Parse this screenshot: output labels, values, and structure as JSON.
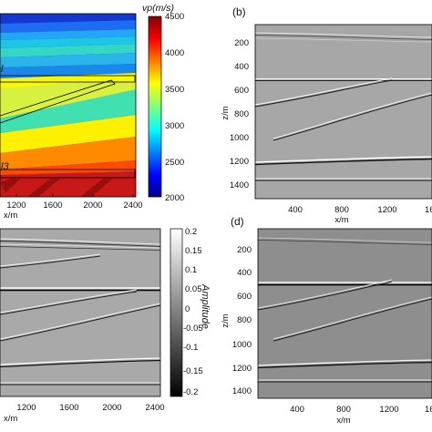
{
  "panels": {
    "a": {
      "colorbar": {
        "title": "vp(m/s)",
        "ticks": [
          "4500",
          "4000",
          "3500",
          "3000",
          "2500",
          "2000"
        ]
      },
      "x_ticks": [
        "1200",
        "1600",
        "2000",
        "2400"
      ],
      "xlabel": "x/m",
      "layer_labels": [
        "l",
        "l3"
      ]
    },
    "b": {
      "letter": "(b)",
      "y_ticks": [
        "200",
        "400",
        "600",
        "800",
        "1000",
        "1200",
        "1400"
      ],
      "ylabel": "z/m",
      "x_ticks": [
        "400",
        "800",
        "1200",
        "16"
      ],
      "xlabel": "x/m"
    },
    "c": {
      "colorbar": {
        "title": "Amplitude",
        "ticks": [
          "0.2",
          "0.15",
          "0.1",
          "0.05",
          "0",
          "-0.05",
          "-0.1",
          "-0.15",
          "-0.2"
        ]
      },
      "x_ticks": [
        "1200",
        "1600",
        "2000",
        "2400"
      ],
      "xlabel": "x/m"
    },
    "d": {
      "letter": "(d)",
      "y_ticks": [
        "200",
        "400",
        "600",
        "800",
        "1000",
        "1200",
        "1400"
      ],
      "ylabel": "z/m",
      "x_ticks": [
        "400",
        "800",
        "1200",
        "16"
      ],
      "xlabel": "x/m"
    }
  },
  "colors": {
    "velocity_low": "#0000b4",
    "velocity_high": "#8b0000",
    "seismic_background": "#a6a6a6",
    "seismic_background_dark": "#8c8c8c"
  }
}
